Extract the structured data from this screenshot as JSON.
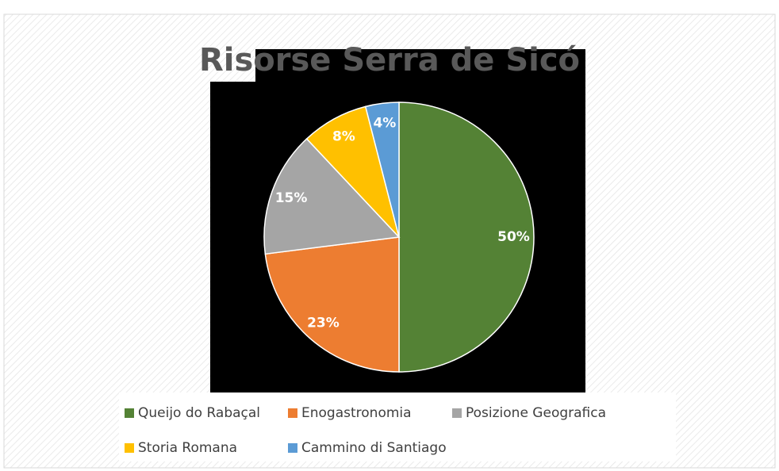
{
  "chart_data": {
    "type": "pie",
    "title": "Risorse Serra de Sicó",
    "categories": [
      "Queijo do Rabaçal",
      "Enogastronomia",
      "Posizione Geografica",
      "Storia Romana",
      "Cammino di Santiago"
    ],
    "values": [
      50,
      23,
      15,
      8,
      4
    ],
    "value_labels": [
      "50%",
      "23%",
      "15%",
      "8%",
      "4%"
    ],
    "colors": [
      "#548235",
      "#ed7d31",
      "#a5a5a5",
      "#ffc000",
      "#5b9bd5"
    ]
  }
}
